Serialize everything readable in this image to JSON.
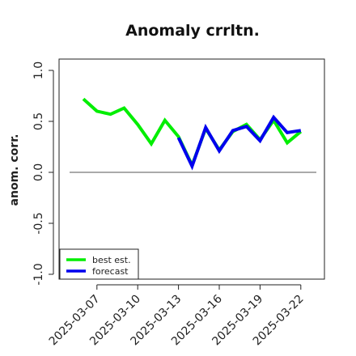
{
  "chart_data": {
    "type": "line",
    "title": "Anomaly crrltn.",
    "ylabel": "anom. corr.",
    "xlabel": "",
    "ylim": [
      -1.0,
      1.0
    ],
    "yticks": [
      "-1.0",
      "-0.5",
      "0.0",
      "0.5",
      "1.0"
    ],
    "x_tick_labels": [
      "2025-03-07",
      "2025-03-10",
      "2025-03-13",
      "2025-03-16",
      "2025-03-19",
      "2025-03-22"
    ],
    "highlight_tick": "2025-03-13",
    "highlight_color": "#2e8b2e",
    "x": [
      "2025-03-06",
      "2025-03-07",
      "2025-03-08",
      "2025-03-09",
      "2025-03-10",
      "2025-03-11",
      "2025-03-12",
      "2025-03-13",
      "2025-03-14",
      "2025-03-15",
      "2025-03-16",
      "2025-03-17",
      "2025-03-18",
      "2025-03-19",
      "2025-03-20",
      "2025-03-21",
      "2025-03-22"
    ],
    "reference_line": 0.0,
    "legend_position": "bottom-left",
    "series": [
      {
        "name": "best est.",
        "color": "#00ee00",
        "values": [
          0.72,
          0.6,
          0.57,
          0.63,
          0.47,
          0.28,
          0.51,
          0.35,
          0.07,
          0.43,
          0.22,
          0.4,
          0.47,
          0.32,
          0.51,
          0.29,
          0.4
        ]
      },
      {
        "name": "forecast",
        "color": "#0000ee",
        "values": [
          null,
          null,
          null,
          null,
          null,
          null,
          null,
          0.34,
          0.06,
          0.44,
          0.21,
          0.41,
          0.45,
          0.31,
          0.54,
          0.39,
          0.41
        ]
      }
    ]
  }
}
